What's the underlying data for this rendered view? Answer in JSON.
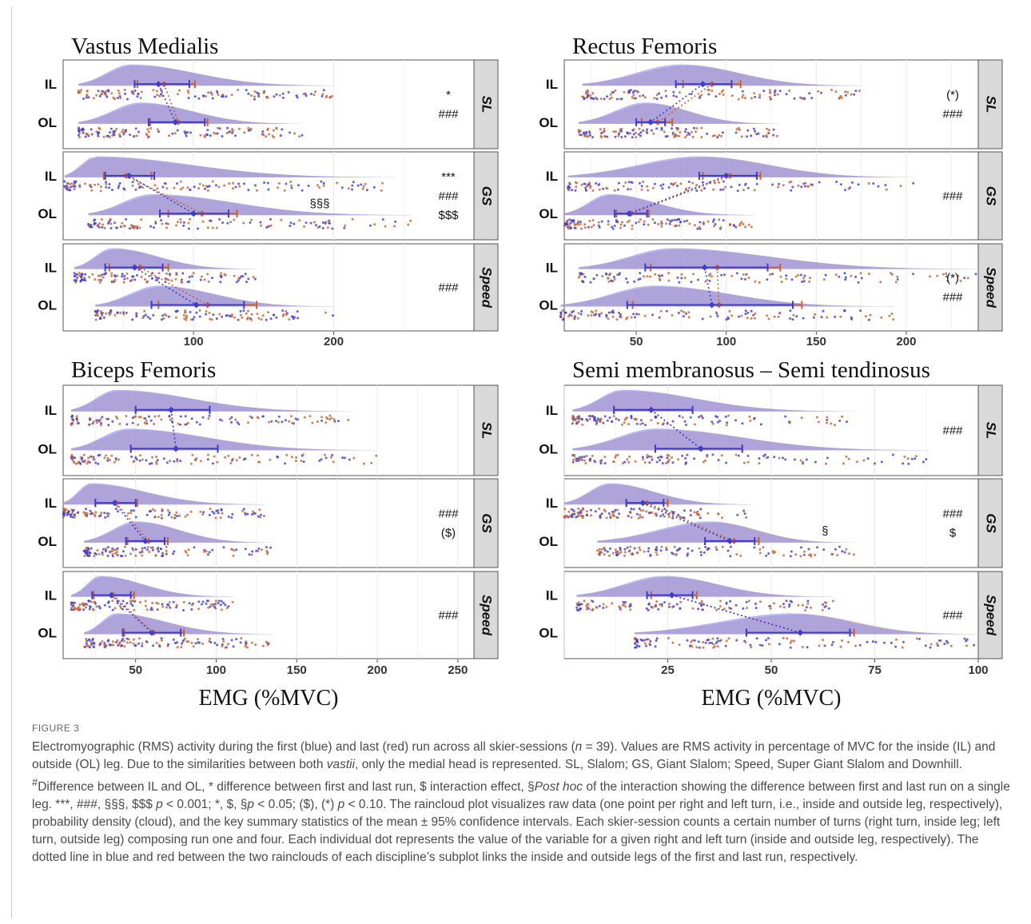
{
  "figure": {
    "label": "FIGURE 3",
    "caption_html": "Electromyographic (RMS) activity during the first (blue) and last (red) run across all skier-sessions (<i>n</i> = 39). Values are RMS activity in percentage of MVC for the inside (IL) and outside (OL) leg. Due to the similarities between both <i>vastii</i>, only the medial head is represented. SL, Slalom; GS, Giant Slalom; Speed, Super Giant Slalom and Downhill. <sup>#</sup>Difference between IL and OL, * difference between first and last run, $ interaction effect, §<i>Post hoc</i> of the interaction showing the difference between first and last run on a single leg. ***, ###, §§§, $$$ <i>p</i> &lt; 0.001; *, $, §<i>p</i> &lt; 0.05; ($), (*) <i>p</i> &lt; 0.10. The raincloud plot visualizes raw data (one point per right and left turn, i.e., inside and outside leg, respectively), probability density (cloud), and the key summary statistics of the mean ± 95% confidence intervals. Each skier-session counts a certain number of turns (right turn, inside leg; left turn, outside leg) composing run one and four. Each individual dot represents the value of the variable for a given right and left turn (inside and outside leg, respectively). The dotted line in blue and red between the two rainclouds of each discipline’s subplot links the inside and outside legs of the first and last run, respectively."
  },
  "colors": {
    "first_run": "#3b3bd6",
    "last_run": "#c8612f",
    "cloud_first": "#8a8ff0",
    "cloud_last": "#d79a86",
    "strip_bg": "#d9d9d9",
    "grid": "#ebebeb"
  },
  "chart_data": [
    {
      "type": "raincloud",
      "title": "Vastus Medialis",
      "xlabel": "EMG (%MVC)",
      "xlim": [
        7,
        300
      ],
      "xticks": [
        100,
        200
      ],
      "facets": [
        {
          "strip": "SL",
          "annotations": [
            "*",
            "###"
          ],
          "IL": {
            "min": 18,
            "max": 200,
            "mode": 55,
            "first": {
              "mean": 75,
              "ci": [
                58,
                97
              ]
            },
            "last": {
              "mean": 79,
              "ci": [
                60,
                101
              ]
            }
          },
          "OL": {
            "min": 18,
            "max": 178,
            "mode": 62,
            "first": {
              "mean": 87,
              "ci": [
                68,
                108
              ]
            },
            "last": {
              "mean": 89,
              "ci": [
                69,
                110
              ]
            }
          }
        },
        {
          "strip": "GS",
          "annotations": [
            "***",
            "###",
            "$$$"
          ],
          "mid_annotation": "§§§",
          "IL": {
            "min": 8,
            "max": 245,
            "mode": 30,
            "first": {
              "mean": 54,
              "ci": [
                37,
                72
              ]
            },
            "last": {
              "mean": 52,
              "ci": [
                36,
                70
              ]
            }
          },
          "OL": {
            "min": 25,
            "max": 255,
            "mode": 70,
            "first": {
              "mean": 100,
              "ci": [
                76,
                125
              ]
            },
            "last": {
              "mean": 106,
              "ci": [
                82,
                131
              ]
            }
          }
        },
        {
          "strip": "Speed",
          "annotations": [
            "###"
          ],
          "IL": {
            "min": 15,
            "max": 145,
            "mode": 42,
            "first": {
              "mean": 58,
              "ci": [
                37,
                78
              ]
            },
            "last": {
              "mean": 62,
              "ci": [
                40,
                82
              ]
            }
          },
          "OL": {
            "min": 30,
            "max": 200,
            "mode": 75,
            "first": {
              "mean": 102,
              "ci": [
                70,
                136
              ]
            },
            "last": {
              "mean": 110,
              "ci": [
                75,
                145
              ]
            }
          }
        }
      ]
    },
    {
      "type": "raincloud",
      "title": "Rectus Femoris",
      "xlabel": "EMG (%MVC)",
      "xlim": [
        10,
        240
      ],
      "xticks": [
        50,
        100,
        150,
        200
      ],
      "facets": [
        {
          "strip": "SL",
          "annotations": [
            "(*)",
            "###"
          ],
          "IL": {
            "min": 20,
            "max": 175,
            "mode": 75,
            "first": {
              "mean": 87,
              "ci": [
                72,
                103
              ]
            },
            "last": {
              "mean": 92,
              "ci": [
                76,
                108
              ]
            }
          },
          "OL": {
            "min": 18,
            "max": 130,
            "mode": 55,
            "first": {
              "mean": 58,
              "ci": [
                50,
                66
              ]
            },
            "last": {
              "mean": 62,
              "ci": [
                53,
                70
              ]
            }
          }
        },
        {
          "strip": "GS",
          "annotations": [
            "###"
          ],
          "IL": {
            "min": 12,
            "max": 205,
            "mode": 85,
            "first": {
              "mean": 100,
              "ci": [
                85,
                117
              ]
            },
            "last": {
              "mean": 102,
              "ci": [
                87,
                119
              ]
            }
          },
          "OL": {
            "min": 10,
            "max": 115,
            "mode": 35,
            "first": {
              "mean": 46,
              "ci": [
                38,
                56
              ]
            },
            "last": {
              "mean": 47,
              "ci": [
                39,
                57
              ]
            }
          }
        },
        {
          "strip": "Speed",
          "annotations": [
            "(*)",
            "###"
          ],
          "IL": {
            "min": 18,
            "max": 240,
            "mode": 70,
            "first": {
              "mean": 88,
              "ci": [
                55,
                123
              ]
            },
            "last": {
              "mean": 95,
              "ci": [
                58,
                130
              ]
            }
          },
          "OL": {
            "min": 8,
            "max": 193,
            "mode": 60,
            "first": {
              "mean": 92,
              "ci": [
                45,
                137
              ]
            },
            "last": {
              "mean": 96,
              "ci": [
                48,
                142
              ]
            }
          }
        }
      ]
    },
    {
      "type": "raincloud",
      "title": "Biceps Femoris",
      "xlabel": "EMG (%MVC)",
      "xlim": [
        5,
        260
      ],
      "xticks": [
        50,
        100,
        150,
        200,
        250
      ],
      "facets": [
        {
          "strip": "SL",
          "annotations": [],
          "IL": {
            "min": 10,
            "max": 185,
            "mode": 38,
            "first": {
              "mean": 72,
              "ci": [
                50,
                96
              ]
            },
            "last": {
              "mean": 72,
              "ci": [
                50,
                96
              ]
            }
          },
          "OL": {
            "min": 10,
            "max": 200,
            "mode": 45,
            "first": {
              "mean": 75,
              "ci": [
                47,
                101
              ]
            },
            "last": {
              "mean": 75,
              "ci": [
                47,
                101
              ]
            }
          }
        },
        {
          "strip": "GS",
          "annotations": [
            "###",
            "($)"
          ],
          "IL": {
            "min": 5,
            "max": 130,
            "mode": 22,
            "first": {
              "mean": 37,
              "ci": [
                25,
                50
              ]
            },
            "last": {
              "mean": 38,
              "ci": [
                25,
                51
              ]
            }
          },
          "OL": {
            "min": 18,
            "max": 135,
            "mode": 50,
            "first": {
              "mean": 56,
              "ci": [
                44,
                68
              ]
            },
            "last": {
              "mean": 58,
              "ci": [
                45,
                70
              ]
            }
          }
        },
        {
          "strip": "Speed",
          "annotations": [
            "###"
          ],
          "IL": {
            "min": 10,
            "max": 112,
            "mode": 28,
            "first": {
              "mean": 35,
              "ci": [
                23,
                47
              ]
            },
            "last": {
              "mean": 36,
              "ci": [
                24,
                49
              ]
            }
          },
          "OL": {
            "min": 18,
            "max": 135,
            "mode": 38,
            "first": {
              "mean": 60,
              "ci": [
                42,
                78
              ]
            },
            "last": {
              "mean": 61,
              "ci": [
                43,
                80
              ]
            }
          }
        }
      ]
    },
    {
      "type": "raincloud",
      "title": "Semi membranosus – Semi tendinosus",
      "xlabel": "EMG (%MVC)",
      "xlim": [
        0,
        100
      ],
      "xticks": [
        25,
        50,
        75,
        100
      ],
      "facets": [
        {
          "strip": "SL",
          "annotations": [
            "###"
          ],
          "IL": {
            "min": 2,
            "max": 70,
            "mode": 14,
            "first": {
              "mean": 21,
              "ci": [
                12,
                31
              ]
            },
            "last": {
              "mean": 21,
              "ci": [
                12,
                31
              ]
            }
          },
          "OL": {
            "min": 2,
            "max": 88,
            "mode": 22,
            "first": {
              "mean": 33,
              "ci": [
                22,
                43
              ]
            },
            "last": {
              "mean": 33,
              "ci": [
                22,
                43
              ]
            }
          }
        },
        {
          "strip": "GS",
          "annotations": [
            "###",
            "$"
          ],
          "mid_annotation": "§",
          "IL": {
            "min": 0,
            "max": 45,
            "mode": 11,
            "first": {
              "mean": 19,
              "ci": [
                15,
                24
              ]
            },
            "last": {
              "mean": 20,
              "ci": [
                15,
                25
              ]
            }
          },
          "OL": {
            "min": 8,
            "max": 70,
            "mode": 35,
            "first": {
              "mean": 40,
              "ci": [
                34,
                46
              ]
            },
            "last": {
              "mean": 41,
              "ci": [
                34,
                47
              ]
            }
          }
        },
        {
          "strip": "Speed",
          "annotations": [
            "###"
          ],
          "IL": {
            "min": 3,
            "max": 65,
            "mode": 24,
            "first": {
              "mean": 26,
              "ci": [
                20,
                31
              ]
            },
            "last": {
              "mean": 26,
              "ci": [
                21,
                32
              ]
            }
          },
          "OL": {
            "min": 17,
            "max": 100,
            "mode": 55,
            "first": {
              "mean": 57,
              "ci": [
                44,
                69
              ]
            },
            "last": {
              "mean": 57,
              "ci": [
                44,
                70
              ]
            }
          }
        }
      ]
    }
  ]
}
